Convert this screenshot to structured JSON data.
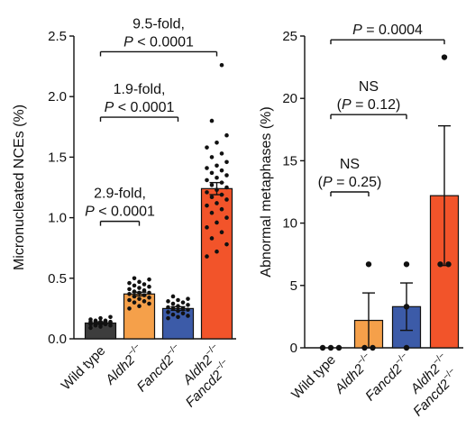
{
  "chart_data": [
    {
      "type": "bar",
      "ylabel": "Micronucleated NCEs (%)",
      "ylim": [
        0,
        2.5
      ],
      "yticks": [
        "0.0",
        "0.5",
        "1.0",
        "1.5",
        "2.0",
        "2.5"
      ],
      "categories": [
        {
          "label": "Wild type",
          "gene": "",
          "super": ""
        },
        {
          "label": "",
          "gene": "Aldh2",
          "super": "−/−"
        },
        {
          "label": "",
          "gene": "Fancd2",
          "super": "−/−"
        },
        {
          "label": "",
          "gene": "Aldh2",
          "super": "−/−",
          "gene2": "Fancd2",
          "super2": "−/−"
        }
      ],
      "colors": [
        "#3d3d3d",
        "#f5a04a",
        "#3c5ba8",
        "#f2542a"
      ],
      "values": [
        0.13,
        0.37,
        0.25,
        1.24
      ],
      "errors": [
        0.01,
        0.015,
        0.015,
        0.05
      ],
      "points": [
        [
          0.09,
          0.1,
          0.11,
          0.11,
          0.12,
          0.12,
          0.12,
          0.13,
          0.13,
          0.13,
          0.14,
          0.14,
          0.14,
          0.15,
          0.15,
          0.16,
          0.17,
          0.18
        ],
        [
          0.25,
          0.27,
          0.29,
          0.3,
          0.31,
          0.32,
          0.33,
          0.34,
          0.35,
          0.36,
          0.37,
          0.38,
          0.38,
          0.39,
          0.4,
          0.41,
          0.42,
          0.43,
          0.44,
          0.45,
          0.46,
          0.47,
          0.49,
          0.5
        ],
        [
          0.17,
          0.18,
          0.19,
          0.2,
          0.21,
          0.22,
          0.23,
          0.24,
          0.25,
          0.25,
          0.26,
          0.27,
          0.28,
          0.29,
          0.3,
          0.31,
          0.32,
          0.33,
          0.35
        ],
        [
          0.68,
          0.72,
          0.78,
          0.83,
          0.88,
          0.92,
          0.96,
          1.0,
          1.04,
          1.07,
          1.1,
          1.12,
          1.15,
          1.17,
          1.19,
          1.21,
          1.23,
          1.25,
          1.27,
          1.29,
          1.31,
          1.33,
          1.35,
          1.37,
          1.39,
          1.41,
          1.43,
          1.46,
          1.5,
          1.53,
          1.58,
          1.62,
          1.68,
          1.8,
          2.26
        ]
      ],
      "comparisons": [
        {
          "from": 0,
          "to": 1,
          "y": 0.97,
          "line1": "2.9-fold,",
          "line2_italic": "P",
          "line2_rest": " < 0.0001"
        },
        {
          "from": 0,
          "to": 2,
          "y": 1.83,
          "line1": "1.9-fold,",
          "line2_italic": "P",
          "line2_rest": " < 0.0001"
        },
        {
          "from": 0,
          "to": 3,
          "y": 2.37,
          "line1": "9.5-fold,",
          "line2_italic": "P",
          "line2_rest": " < 0.0001"
        }
      ]
    },
    {
      "type": "bar",
      "ylabel": "Abnormal metaphases (%)",
      "ylim": [
        0,
        25
      ],
      "yticks": [
        "0",
        "5",
        "10",
        "15",
        "20",
        "25"
      ],
      "categories": [
        {
          "label": "Wild type",
          "gene": "",
          "super": ""
        },
        {
          "label": "",
          "gene": "Aldh2",
          "super": "−/−"
        },
        {
          "label": "",
          "gene": "Fancd2",
          "super": "−/−"
        },
        {
          "label": "",
          "gene": "Aldh2",
          "super": "−/−",
          "gene2": "Fancd2",
          "super2": "−/−"
        }
      ],
      "colors": [
        "#3d3d3d",
        "#f5a04a",
        "#3c5ba8",
        "#f2542a"
      ],
      "values": [
        0,
        2.2,
        3.3,
        12.2
      ],
      "errors": [
        0,
        2.2,
        1.9,
        5.6
      ],
      "points": [
        [
          0,
          0,
          0
        ],
        [
          0,
          0,
          6.7
        ],
        [
          0,
          3.3,
          6.7
        ],
        [
          6.7,
          6.7,
          23.3
        ]
      ],
      "comparisons": [
        {
          "from": 0,
          "to": 1,
          "y": 12.5,
          "line1": "NS",
          "line2_open": "(",
          "line2_italic": "P",
          "line2_rest": " = 0.25)"
        },
        {
          "from": 0,
          "to": 2,
          "y": 18.7,
          "line1": "NS",
          "line2_open": "(",
          "line2_italic": "P",
          "line2_rest": " = 0.12)"
        },
        {
          "from": 0,
          "to": 3,
          "y": 24.7,
          "line1": "",
          "line2_italic": "P",
          "line2_rest": " = 0.0004"
        }
      ]
    }
  ]
}
